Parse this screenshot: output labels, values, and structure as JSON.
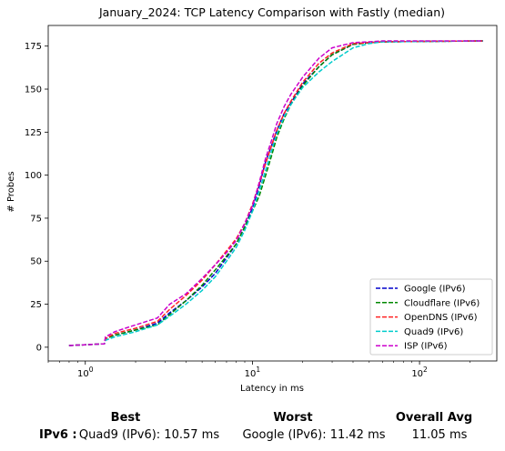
{
  "chart_data": {
    "type": "line",
    "title": "January_2024: TCP Latency Comparison with Fastly (median)",
    "xlabel": "Latency in ms",
    "ylabel": "# Probes",
    "xscale": "log",
    "xlim": [
      0.6,
      290
    ],
    "ylim": [
      -8,
      187
    ],
    "x_ticks": [
      {
        "value": 1,
        "label": "10^0"
      },
      {
        "value": 10,
        "label": "10^1"
      },
      {
        "value": 100,
        "label": "10^2"
      }
    ],
    "y_ticks": [
      0,
      25,
      50,
      75,
      100,
      125,
      150,
      175
    ],
    "legend_position": "lower-right",
    "grid": false,
    "series": [
      {
        "name": "Google (IPv6)",
        "color": "#0000cc",
        "dash": "dashed",
        "x": [
          0.8,
          1.3,
          1.32,
          1.5,
          2.0,
          2.7,
          3.2,
          4.0,
          5.0,
          6.0,
          7.0,
          8.0,
          9.0,
          10.0,
          11.0,
          12.0,
          13.0,
          14.0,
          15.5,
          17.0,
          20.0,
          25.0,
          30.0,
          40.0,
          50.0,
          60.0,
          240.0
        ],
        "y": [
          1,
          2,
          5,
          7,
          10,
          14,
          20,
          27,
          35,
          43,
          52,
          60,
          70,
          81,
          94,
          108,
          117,
          126,
          136,
          142,
          153,
          163,
          170,
          176,
          177,
          177.5,
          178
        ]
      },
      {
        "name": "Cloudflare (IPv6)",
        "color": "#008800",
        "dash": "dashed",
        "x": [
          0.8,
          1.3,
          1.32,
          1.5,
          2.0,
          2.7,
          3.2,
          4.0,
          5.0,
          6.0,
          7.0,
          8.0,
          9.0,
          10.0,
          11.0,
          12.0,
          13.0,
          14.0,
          15.5,
          17.0,
          20.0,
          25.0,
          30.0,
          40.0,
          50.0,
          60.0,
          240.0
        ],
        "y": [
          1,
          2,
          5,
          7,
          10,
          13,
          19,
          27,
          36,
          45,
          53,
          60,
          70,
          79,
          88,
          100,
          111,
          122,
          133,
          141,
          152,
          163,
          170,
          176,
          177,
          177.5,
          178
        ]
      },
      {
        "name": "OpenDNS (IPv6)",
        "color": "#ff2222",
        "dash": "dashed",
        "x": [
          0.8,
          1.3,
          1.32,
          1.5,
          2.0,
          2.7,
          3.2,
          4.0,
          5.0,
          6.0,
          7.0,
          8.0,
          9.0,
          10.0,
          11.0,
          12.0,
          13.0,
          14.0,
          15.5,
          17.0,
          20.0,
          25.0,
          30.0,
          40.0,
          50.0,
          60.0,
          240.0
        ],
        "y": [
          1,
          2,
          5,
          8,
          11,
          15,
          22,
          30,
          39,
          48,
          56,
          63,
          72,
          83,
          95,
          107,
          117,
          126,
          136,
          143,
          154,
          165,
          171,
          176.5,
          177,
          177.5,
          178
        ]
      },
      {
        "name": "Quad9 (IPv6)",
        "color": "#00cccc",
        "dash": "dashed",
        "x": [
          0.8,
          1.3,
          1.32,
          1.5,
          2.0,
          2.7,
          3.2,
          4.0,
          5.0,
          6.0,
          7.0,
          8.0,
          9.0,
          10.0,
          11.0,
          12.0,
          13.0,
          14.0,
          15.5,
          17.0,
          20.0,
          25.0,
          30.0,
          40.0,
          50.0,
          60.0,
          240.0
        ],
        "y": [
          1,
          2,
          4,
          6,
          9,
          13,
          18,
          25,
          33,
          41,
          50,
          58,
          68,
          79,
          91,
          103,
          114,
          124,
          134,
          141,
          151,
          160,
          166,
          174,
          176.5,
          177.5,
          178
        ]
      },
      {
        "name": "ISP (IPv6)",
        "color": "#cc00cc",
        "dash": "dashed",
        "x": [
          0.8,
          1.3,
          1.32,
          1.5,
          2.0,
          2.7,
          3.2,
          4.0,
          5.0,
          6.0,
          7.0,
          8.0,
          9.0,
          10.0,
          11.0,
          12.0,
          13.0,
          14.0,
          15.5,
          17.0,
          20.0,
          25.0,
          30.0,
          40.0,
          50.0,
          60.0,
          240.0
        ],
        "y": [
          1,
          2,
          6,
          9,
          13,
          17,
          25,
          31,
          40,
          48,
          55,
          62,
          72,
          82,
          96,
          110,
          120,
          130,
          140,
          147,
          157,
          168,
          174,
          177,
          177.5,
          178,
          178
        ]
      }
    ]
  },
  "summary": {
    "best_header": "Best",
    "worst_header": "Worst",
    "avg_header": "Overall Avg",
    "row_label": "IPv6 :",
    "best_value": "Quad9 (IPv6): 10.57 ms",
    "worst_value": "Google (IPv6): 11.42 ms",
    "avg_value": "11.05 ms"
  }
}
